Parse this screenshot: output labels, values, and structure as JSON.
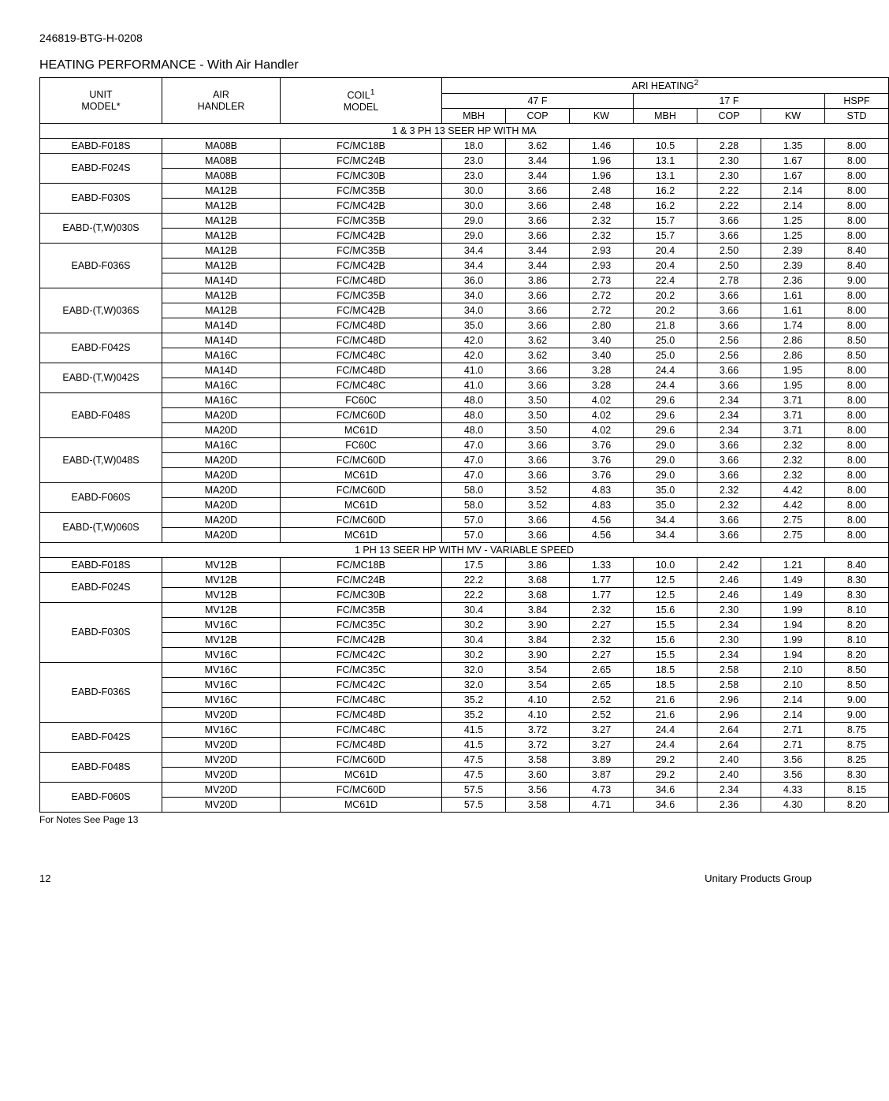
{
  "doc_code": "246819-BTG-H-0208",
  "title": "HEATING PERFORMANCE - With Air Handler",
  "header": {
    "unit_model": "UNIT\nMODEL*",
    "air_handler": "AIR\nHANDLER",
    "coil_model": "COIL",
    "coil_sup": "1",
    "coil_model2": "MODEL",
    "ari": "ARI HEATING",
    "ari_sup": "2",
    "t47": "47 F",
    "t17": "17 F",
    "hspf": "HSPF",
    "mbh": "MBH",
    "cop": "COP",
    "kw": "KW",
    "std": "STD"
  },
  "section1": "1 & 3 PH 13 SEER HP WITH MA",
  "section2": "1 PH 13 SEER HP WITH MV - VARIABLE SPEED",
  "footer_note": "For Notes See Page 13",
  "page_num": "12",
  "footer_right": "Unitary Products Group",
  "rows1": [
    {
      "unit": "EABD-F018S",
      "span": 1,
      "air": "MA08B",
      "coil": "FC/MC18B",
      "d": [
        "18.0",
        "3.62",
        "1.46",
        "10.5",
        "2.28",
        "1.35",
        "8.00"
      ]
    },
    {
      "unit": "EABD-F024S",
      "span": 2,
      "air": "MA08B",
      "coil": "FC/MC24B",
      "d": [
        "23.0",
        "3.44",
        "1.96",
        "13.1",
        "2.30",
        "1.67",
        "8.00"
      ]
    },
    {
      "air": "MA08B",
      "coil": "FC/MC30B",
      "d": [
        "23.0",
        "3.44",
        "1.96",
        "13.1",
        "2.30",
        "1.67",
        "8.00"
      ]
    },
    {
      "unit": "EABD-F030S",
      "span": 2,
      "air": "MA12B",
      "coil": "FC/MC35B",
      "d": [
        "30.0",
        "3.66",
        "2.48",
        "16.2",
        "2.22",
        "2.14",
        "8.00"
      ]
    },
    {
      "air": "MA12B",
      "coil": "FC/MC42B",
      "d": [
        "30.0",
        "3.66",
        "2.48",
        "16.2",
        "2.22",
        "2.14",
        "8.00"
      ]
    },
    {
      "unit": "EABD-(T,W)030S",
      "span": 2,
      "air": "MA12B",
      "coil": "FC/MC35B",
      "d": [
        "29.0",
        "3.66",
        "2.32",
        "15.7",
        "3.66",
        "1.25",
        "8.00"
      ]
    },
    {
      "air": "MA12B",
      "coil": "FC/MC42B",
      "d": [
        "29.0",
        "3.66",
        "2.32",
        "15.7",
        "3.66",
        "1.25",
        "8.00"
      ]
    },
    {
      "unit": "EABD-F036S",
      "span": 3,
      "air": "MA12B",
      "coil": "FC/MC35B",
      "d": [
        "34.4",
        "3.44",
        "2.93",
        "20.4",
        "2.50",
        "2.39",
        "8.40"
      ]
    },
    {
      "air": "MA12B",
      "coil": "FC/MC42B",
      "d": [
        "34.4",
        "3.44",
        "2.93",
        "20.4",
        "2.50",
        "2.39",
        "8.40"
      ]
    },
    {
      "air": "MA14D",
      "coil": "FC/MC48D",
      "d": [
        "36.0",
        "3.86",
        "2.73",
        "22.4",
        "2.78",
        "2.36",
        "9.00"
      ]
    },
    {
      "unit": "EABD-(T,W)036S",
      "span": 3,
      "air": "MA12B",
      "coil": "FC/MC35B",
      "d": [
        "34.0",
        "3.66",
        "2.72",
        "20.2",
        "3.66",
        "1.61",
        "8.00"
      ]
    },
    {
      "air": "MA12B",
      "coil": "FC/MC42B",
      "d": [
        "34.0",
        "3.66",
        "2.72",
        "20.2",
        "3.66",
        "1.61",
        "8.00"
      ]
    },
    {
      "air": "MA14D",
      "coil": "FC/MC48D",
      "d": [
        "35.0",
        "3.66",
        "2.80",
        "21.8",
        "3.66",
        "1.74",
        "8.00"
      ]
    },
    {
      "unit": "EABD-F042S",
      "span": 2,
      "air": "MA14D",
      "coil": "FC/MC48D",
      "d": [
        "42.0",
        "3.62",
        "3.40",
        "25.0",
        "2.56",
        "2.86",
        "8.50"
      ]
    },
    {
      "air": "MA16C",
      "coil": "FC/MC48C",
      "d": [
        "42.0",
        "3.62",
        "3.40",
        "25.0",
        "2.56",
        "2.86",
        "8.50"
      ]
    },
    {
      "unit": "EABD-(T,W)042S",
      "span": 2,
      "air": "MA14D",
      "coil": "FC/MC48D",
      "d": [
        "41.0",
        "3.66",
        "3.28",
        "24.4",
        "3.66",
        "1.95",
        "8.00"
      ]
    },
    {
      "air": "MA16C",
      "coil": "FC/MC48C",
      "d": [
        "41.0",
        "3.66",
        "3.28",
        "24.4",
        "3.66",
        "1.95",
        "8.00"
      ]
    },
    {
      "unit": "EABD-F048S",
      "span": 3,
      "air": "MA16C",
      "coil": "FC60C",
      "d": [
        "48.0",
        "3.50",
        "4.02",
        "29.6",
        "2.34",
        "3.71",
        "8.00"
      ]
    },
    {
      "air": "MA20D",
      "coil": "FC/MC60D",
      "d": [
        "48.0",
        "3.50",
        "4.02",
        "29.6",
        "2.34",
        "3.71",
        "8.00"
      ]
    },
    {
      "air": "MA20D",
      "coil": "MC61D",
      "d": [
        "48.0",
        "3.50",
        "4.02",
        "29.6",
        "2.34",
        "3.71",
        "8.00"
      ]
    },
    {
      "unit": "EABD-(T,W)048S",
      "span": 3,
      "air": "MA16C",
      "coil": "FC60C",
      "d": [
        "47.0",
        "3.66",
        "3.76",
        "29.0",
        "3.66",
        "2.32",
        "8.00"
      ]
    },
    {
      "air": "MA20D",
      "coil": "FC/MC60D",
      "d": [
        "47.0",
        "3.66",
        "3.76",
        "29.0",
        "3.66",
        "2.32",
        "8.00"
      ]
    },
    {
      "air": "MA20D",
      "coil": "MC61D",
      "d": [
        "47.0",
        "3.66",
        "3.76",
        "29.0",
        "3.66",
        "2.32",
        "8.00"
      ]
    },
    {
      "unit": "EABD-F060S",
      "span": 2,
      "air": "MA20D",
      "coil": "FC/MC60D",
      "d": [
        "58.0",
        "3.52",
        "4.83",
        "35.0",
        "2.32",
        "4.42",
        "8.00"
      ]
    },
    {
      "air": "MA20D",
      "coil": "MC61D",
      "d": [
        "58.0",
        "3.52",
        "4.83",
        "35.0",
        "2.32",
        "4.42",
        "8.00"
      ]
    },
    {
      "unit": "EABD-(T,W)060S",
      "span": 2,
      "air": "MA20D",
      "coil": "FC/MC60D",
      "d": [
        "57.0",
        "3.66",
        "4.56",
        "34.4",
        "3.66",
        "2.75",
        "8.00"
      ]
    },
    {
      "air": "MA20D",
      "coil": "MC61D",
      "d": [
        "57.0",
        "3.66",
        "4.56",
        "34.4",
        "3.66",
        "2.75",
        "8.00"
      ]
    }
  ],
  "rows2": [
    {
      "unit": "EABD-F018S",
      "span": 1,
      "air": "MV12B",
      "coil": "FC/MC18B",
      "d": [
        "17.5",
        "3.86",
        "1.33",
        "10.0",
        "2.42",
        "1.21",
        "8.40"
      ]
    },
    {
      "unit": "EABD-F024S",
      "span": 2,
      "air": "MV12B",
      "coil": "FC/MC24B",
      "d": [
        "22.2",
        "3.68",
        "1.77",
        "12.5",
        "2.46",
        "1.49",
        "8.30"
      ]
    },
    {
      "air": "MV12B",
      "coil": "FC/MC30B",
      "d": [
        "22.2",
        "3.68",
        "1.77",
        "12.5",
        "2.46",
        "1.49",
        "8.30"
      ]
    },
    {
      "unit": "EABD-F030S",
      "span": 4,
      "air": "MV12B",
      "coil": "FC/MC35B",
      "d": [
        "30.4",
        "3.84",
        "2.32",
        "15.6",
        "2.30",
        "1.99",
        "8.10"
      ]
    },
    {
      "air": "MV16C",
      "coil": "FC/MC35C",
      "d": [
        "30.2",
        "3.90",
        "2.27",
        "15.5",
        "2.34",
        "1.94",
        "8.20"
      ]
    },
    {
      "air": "MV12B",
      "coil": "FC/MC42B",
      "d": [
        "30.4",
        "3.84",
        "2.32",
        "15.6",
        "2.30",
        "1.99",
        "8.10"
      ]
    },
    {
      "air": "MV16C",
      "coil": "FC/MC42C",
      "d": [
        "30.2",
        "3.90",
        "2.27",
        "15.5",
        "2.34",
        "1.94",
        "8.20"
      ]
    },
    {
      "unit": "EABD-F036S",
      "span": 4,
      "air": "MV16C",
      "coil": "FC/MC35C",
      "d": [
        "32.0",
        "3.54",
        "2.65",
        "18.5",
        "2.58",
        "2.10",
        "8.50"
      ]
    },
    {
      "air": "MV16C",
      "coil": "FC/MC42C",
      "d": [
        "32.0",
        "3.54",
        "2.65",
        "18.5",
        "2.58",
        "2.10",
        "8.50"
      ]
    },
    {
      "air": "MV16C",
      "coil": "FC/MC48C",
      "d": [
        "35.2",
        "4.10",
        "2.52",
        "21.6",
        "2.96",
        "2.14",
        "9.00"
      ]
    },
    {
      "air": "MV20D",
      "coil": "FC/MC48D",
      "d": [
        "35.2",
        "4.10",
        "2.52",
        "21.6",
        "2.96",
        "2.14",
        "9.00"
      ]
    },
    {
      "unit": "EABD-F042S",
      "span": 2,
      "air": "MV16C",
      "coil": "FC/MC48C",
      "d": [
        "41.5",
        "3.72",
        "3.27",
        "24.4",
        "2.64",
        "2.71",
        "8.75"
      ]
    },
    {
      "air": "MV20D",
      "coil": "FC/MC48D",
      "d": [
        "41.5",
        "3.72",
        "3.27",
        "24.4",
        "2.64",
        "2.71",
        "8.75"
      ]
    },
    {
      "unit": "EABD-F048S",
      "span": 2,
      "air": "MV20D",
      "coil": "FC/MC60D",
      "d": [
        "47.5",
        "3.58",
        "3.89",
        "29.2",
        "2.40",
        "3.56",
        "8.25"
      ]
    },
    {
      "air": "MV20D",
      "coil": "MC61D",
      "d": [
        "47.5",
        "3.60",
        "3.87",
        "29.2",
        "2.40",
        "3.56",
        "8.30"
      ]
    },
    {
      "unit": "EABD-F060S",
      "span": 2,
      "air": "MV20D",
      "coil": "FC/MC60D",
      "d": [
        "57.5",
        "3.56",
        "4.73",
        "34.6",
        "2.34",
        "4.33",
        "8.15"
      ]
    },
    {
      "air": "MV20D",
      "coil": "MC61D",
      "d": [
        "57.5",
        "3.58",
        "4.71",
        "34.6",
        "2.36",
        "4.30",
        "8.20"
      ]
    }
  ],
  "col_widths": {
    "unit": 155,
    "air": 150,
    "coil": 205,
    "val": 81
  }
}
